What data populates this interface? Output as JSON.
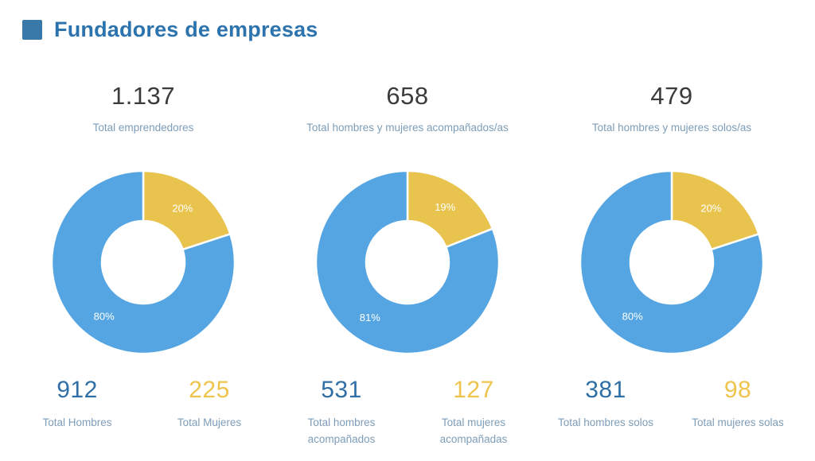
{
  "header": {
    "title": "Fundadores de empresas"
  },
  "colors": {
    "title_text": "#2d73ad",
    "title_bullet": "#3879a9",
    "big_number": "#3b3b3d",
    "label_text": "#7e9db8",
    "percent_label": "#ffffff",
    "slice_stroke": "#ffffff"
  },
  "chart_data": [
    {
      "type": "pie",
      "variant": "donut",
      "total_value": 1137,
      "total_display": "1.137",
      "total_label": "Total emprendedores",
      "segments": [
        {
          "label": "Total Hombres",
          "value": 912,
          "value_display": "912",
          "pct": 80,
          "pct_label": "80%",
          "slice_color": "#55a5e2",
          "number_color": "#2f6fa5"
        },
        {
          "label": "Total Mujeres",
          "value": 225,
          "value_display": "225",
          "pct": 20,
          "pct_label": "20%",
          "slice_color": "#e8c34e",
          "number_color": "#efc44c"
        }
      ]
    },
    {
      "type": "pie",
      "variant": "donut",
      "total_value": 658,
      "total_display": "658",
      "total_label": "Total hombres y mujeres acompañados/as",
      "segments": [
        {
          "label": "Total hombres acompañados",
          "value": 531,
          "value_display": "531",
          "pct": 81,
          "pct_label": "81%",
          "slice_color": "#55a5e2",
          "number_color": "#2f6fa5"
        },
        {
          "label": "Total mujeres acompañadas",
          "value": 127,
          "value_display": "127",
          "pct": 19,
          "pct_label": "19%",
          "slice_color": "#e8c34e",
          "number_color": "#efc44c"
        }
      ]
    },
    {
      "type": "pie",
      "variant": "donut",
      "total_value": 479,
      "total_display": "479",
      "total_label": "Total hombres y mujeres solos/as",
      "segments": [
        {
          "label": "Total hombres solos",
          "value": 381,
          "value_display": "381",
          "pct": 80,
          "pct_label": "80%",
          "slice_color": "#55a5e2",
          "number_color": "#2f6fa5"
        },
        {
          "label": "Total mujeres solas",
          "value": 98,
          "value_display": "98",
          "pct": 20,
          "pct_label": "20%",
          "slice_color": "#e8c34e",
          "number_color": "#efc44c"
        }
      ]
    }
  ]
}
